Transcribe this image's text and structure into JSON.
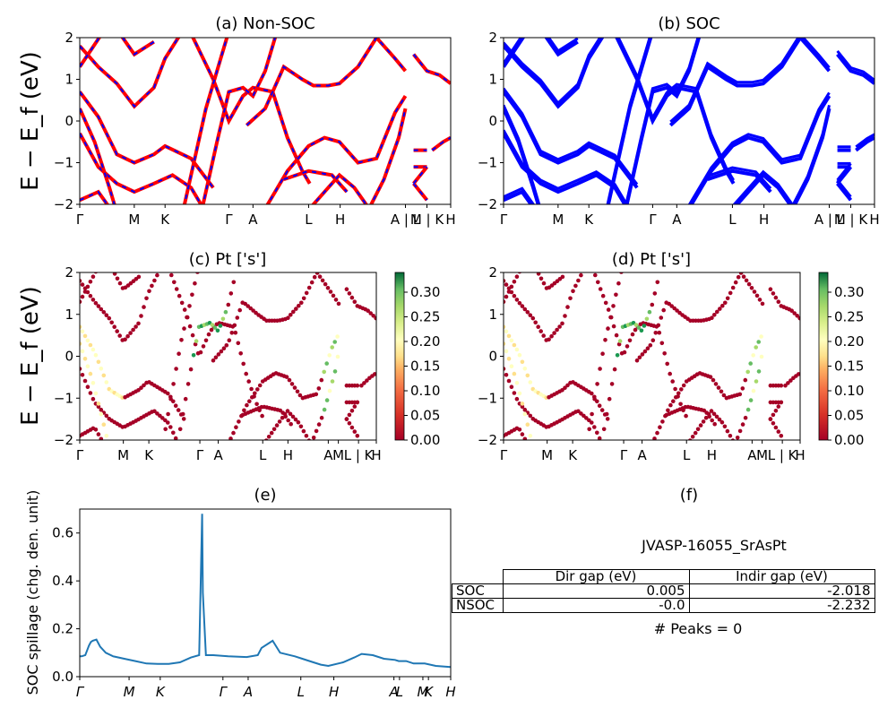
{
  "chart_data": [
    {
      "id": "a",
      "type": "line",
      "title": "(a) Non-SOC",
      "ylabel": "E − E_f (eV)",
      "ylim": [
        -2,
        2
      ],
      "yticks": [
        "2",
        "1",
        "0",
        "−1",
        "−2"
      ],
      "xticks": [
        "Γ",
        "M",
        "K",
        "Γ",
        "A",
        "L",
        "H",
        "A | L",
        "M | K",
        "H"
      ],
      "line_color": "#ff0000",
      "dash_color": "#0000ff"
    },
    {
      "id": "b",
      "type": "line",
      "title": "(b) SOC",
      "ylim": [
        -2,
        2
      ],
      "yticks": [
        "2",
        "1",
        "0",
        "−1",
        "−2"
      ],
      "xticks": [
        "Γ",
        "M",
        "K",
        "Γ",
        "A",
        "L",
        "H",
        "A | L",
        "M | K",
        "H"
      ],
      "line_color": "#0000ff"
    },
    {
      "id": "c",
      "type": "scatter",
      "title": "(c)  Pt ['s']",
      "ylabel": "E − E_f (eV)",
      "ylim": [
        -2,
        2
      ],
      "yticks": [
        "2",
        "1",
        "0",
        "−1",
        "−2"
      ],
      "xticks": [
        "Γ",
        "M",
        "K",
        "Γ",
        "A",
        "L",
        "H",
        "A",
        "M",
        "L | K",
        "H"
      ],
      "colorbar": {
        "min": 0.0,
        "max": 0.34,
        "ticks": [
          "0.30",
          "0.25",
          "0.20",
          "0.15",
          "0.10",
          "0.05",
          "0.00"
        ],
        "colormap": "RdYlGn"
      }
    },
    {
      "id": "d",
      "type": "scatter",
      "title": "(d) Pt ['s']",
      "ylim": [
        -2,
        2
      ],
      "yticks": [
        "2",
        "1",
        "0",
        "−1",
        "−2"
      ],
      "xticks": [
        "Γ",
        "M",
        "K",
        "Γ",
        "A",
        "L",
        "H",
        "A",
        "M",
        "L | K",
        "H"
      ],
      "colorbar": {
        "min": 0.0,
        "max": 0.34,
        "ticks": [
          "0.30",
          "0.25",
          "0.20",
          "0.15",
          "0.10",
          "0.05",
          "0.00"
        ],
        "colormap": "RdYlGn"
      }
    },
    {
      "id": "e",
      "type": "line",
      "title": "(e)",
      "ylabel": "SOC spillage (chg. den. unit)",
      "ylim": [
        0,
        0.7
      ],
      "yticks": [
        "0.6",
        "0.4",
        "0.2",
        "0.0"
      ],
      "xticks": [
        "Γ",
        "M",
        "K",
        "Γ",
        "A",
        "L",
        "H",
        "A",
        "L",
        "M",
        "K",
        "H"
      ],
      "series": [
        {
          "name": "spillage",
          "color": "#1f77b4",
          "x": [
            0,
            0.005,
            0.015,
            0.025,
            0.03,
            0.035,
            0.045,
            0.055,
            0.07,
            0.09,
            0.12,
            0.15,
            0.18,
            0.21,
            0.24,
            0.27,
            0.3,
            0.322,
            0.33,
            0.332,
            0.34,
            0.36,
            0.4,
            0.45,
            0.48,
            0.49,
            0.51,
            0.52,
            0.54,
            0.58,
            0.6,
            0.63,
            0.65,
            0.67,
            0.71,
            0.74,
            0.76,
            0.79,
            0.82,
            0.85,
            0.86,
            0.88,
            0.9,
            0.93,
            0.96,
            1.0
          ],
          "y": [
            0.085,
            0.085,
            0.09,
            0.13,
            0.145,
            0.15,
            0.155,
            0.125,
            0.1,
            0.085,
            0.075,
            0.065,
            0.055,
            0.053,
            0.053,
            0.06,
            0.08,
            0.09,
            0.68,
            0.35,
            0.09,
            0.09,
            0.085,
            0.082,
            0.09,
            0.12,
            0.14,
            0.15,
            0.1,
            0.085,
            0.075,
            0.06,
            0.05,
            0.045,
            0.06,
            0.08,
            0.095,
            0.09,
            0.075,
            0.07,
            0.065,
            0.065,
            0.055,
            0.055,
            0.045,
            0.04
          ]
        }
      ]
    }
  ],
  "panel_f": {
    "title": "(f)",
    "material": "JVASP-16055_SrAsPt",
    "table": {
      "headers": [
        "",
        "Dir gap (eV)",
        "Indir gap (eV)"
      ],
      "rows": [
        {
          "label": "SOC",
          "dir": "0.005",
          "indir": "-2.018"
        },
        {
          "label": "NSOC",
          "dir": "-0.0",
          "indir": "-2.232"
        }
      ]
    },
    "peaks": "# Peaks = 0"
  }
}
